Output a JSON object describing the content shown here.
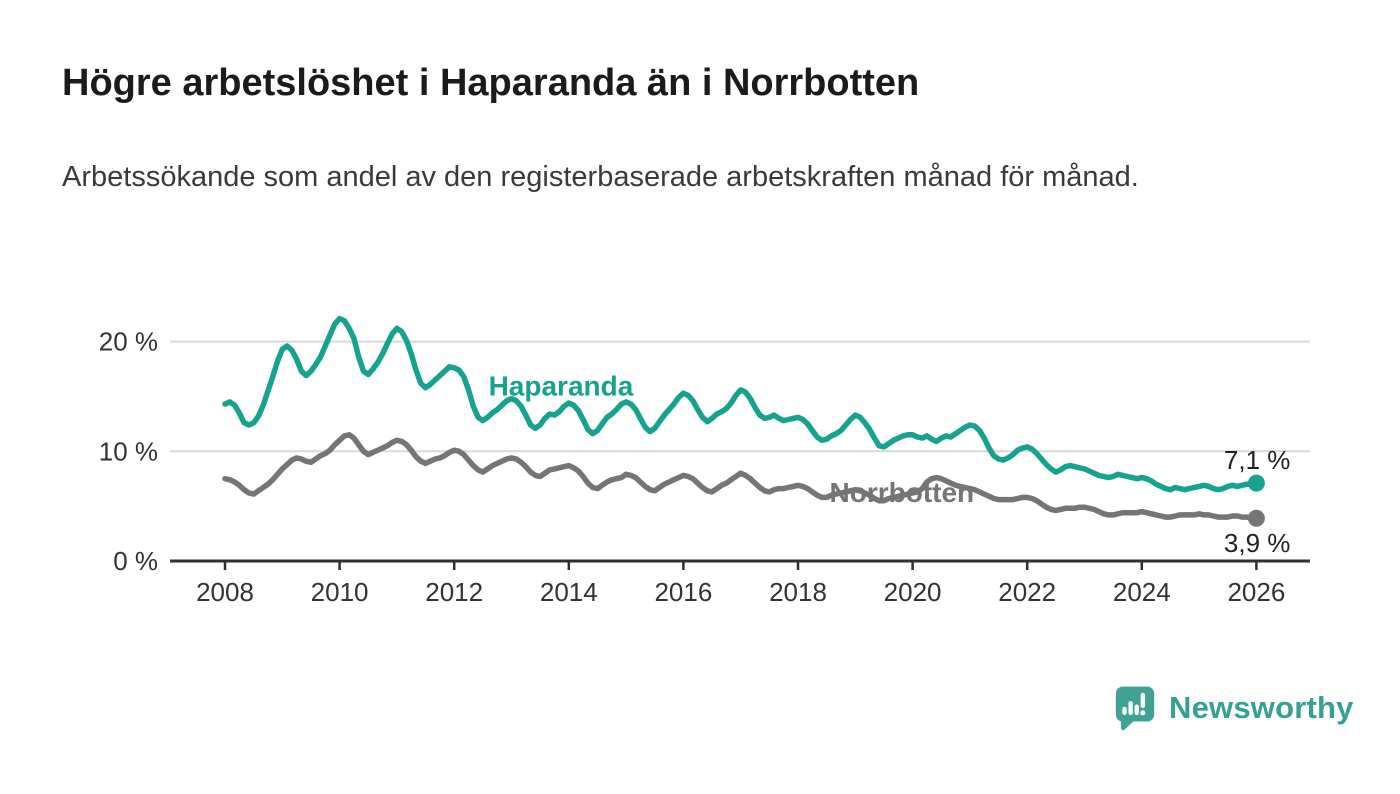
{
  "header": {
    "title": "Högre arbetslöshet i Haparanda än i Norrbotten",
    "subtitle": "Arbetssökande som andel av den registerbaserade arbetskraften månad för månad."
  },
  "footer": {
    "brand": "Newsworthy",
    "brand_color": "#35a093"
  },
  "chart_data": {
    "type": "line",
    "title": "Högre arbetslöshet i Haparanda än i Norrbotten",
    "xlabel": "",
    "ylabel": "",
    "x_origin_year": 2008,
    "x_ticks": [
      2008,
      2010,
      2012,
      2014,
      2016,
      2018,
      2020,
      2022,
      2024,
      2026
    ],
    "y_ticks": [
      {
        "value": 0,
        "label": "0 %"
      },
      {
        "value": 10,
        "label": "10 %"
      },
      {
        "value": 20,
        "label": "20 %"
      }
    ],
    "grid_values": [
      10,
      20
    ],
    "ylim": [
      0,
      24
    ],
    "legend_position": "inline-labels",
    "colors": {
      "grid": "#d9d9d9",
      "axis": "#2f2f2f",
      "tick_text": "#333333",
      "value_text": "#222222"
    },
    "frequency": "monthly",
    "series": [
      {
        "name": "Haparanda",
        "color": "#17a28f",
        "start_year": 2008,
        "end_label": "7,1 %",
        "end_label_position": "above",
        "label_pos": {
          "x": 2012.6,
          "y": 15.1
        },
        "values": [
          14.3,
          14.5,
          14.2,
          13.5,
          12.6,
          12.4,
          12.6,
          13.2,
          14.2,
          15.5,
          16.8,
          18.2,
          19.3,
          19.6,
          19.2,
          18.4,
          17.3,
          16.9,
          17.3,
          17.9,
          18.6,
          19.6,
          20.6,
          21.6,
          22.1,
          21.9,
          21.2,
          20.3,
          18.6,
          17.3,
          17.0,
          17.5,
          18.1,
          18.9,
          19.8,
          20.7,
          21.2,
          20.9,
          20.1,
          18.9,
          17.4,
          16.2,
          15.8,
          16.1,
          16.5,
          16.9,
          17.3,
          17.7,
          17.6,
          17.4,
          16.8,
          15.6,
          14.1,
          13.1,
          12.8,
          13.1,
          13.5,
          13.8,
          14.2,
          14.6,
          14.8,
          14.6,
          14.1,
          13.3,
          12.4,
          12.1,
          12.4,
          13.0,
          13.4,
          13.3,
          13.6,
          14.1,
          14.4,
          14.2,
          13.7,
          12.9,
          12.0,
          11.6,
          11.9,
          12.5,
          13.1,
          13.4,
          13.8,
          14.3,
          14.5,
          14.3,
          13.8,
          13.0,
          12.2,
          11.8,
          12.1,
          12.7,
          13.3,
          13.8,
          14.3,
          14.9,
          15.3,
          15.1,
          14.6,
          13.8,
          13.1,
          12.7,
          13.0,
          13.4,
          13.6,
          13.9,
          14.4,
          15.1,
          15.6,
          15.4,
          14.8,
          14.0,
          13.3,
          13.0,
          13.1,
          13.3,
          13.0,
          12.8,
          12.9,
          13.0,
          13.1,
          12.9,
          12.5,
          11.9,
          11.3,
          11.0,
          11.1,
          11.4,
          11.6,
          11.9,
          12.4,
          12.9,
          13.3,
          13.1,
          12.6,
          12.0,
          11.2,
          10.5,
          10.4,
          10.7,
          11.0,
          11.2,
          11.4,
          11.5,
          11.5,
          11.3,
          11.2,
          11.4,
          11.1,
          10.9,
          11.2,
          11.4,
          11.3,
          11.6,
          11.9,
          12.2,
          12.4,
          12.3,
          11.9,
          11.2,
          10.3,
          9.6,
          9.3,
          9.2,
          9.4,
          9.7,
          10.1,
          10.3,
          10.4,
          10.2,
          9.8,
          9.3,
          8.8,
          8.4,
          8.1,
          8.3,
          8.6,
          8.7,
          8.6,
          8.5,
          8.4,
          8.2,
          8.0,
          7.8,
          7.7,
          7.6,
          7.7,
          7.9,
          7.8,
          7.7,
          7.6,
          7.5,
          7.6,
          7.5,
          7.3,
          7.0,
          6.8,
          6.6,
          6.5,
          6.7,
          6.6,
          6.5,
          6.6,
          6.7,
          6.8,
          6.9,
          6.8,
          6.6,
          6.5,
          6.6,
          6.8,
          6.9,
          6.8,
          6.9,
          7.0,
          7.0,
          7.1
        ]
      },
      {
        "name": "Norrbotten",
        "color": "#757575",
        "start_year": 2008,
        "end_label": "3,9 %",
        "end_label_position": "below",
        "label_pos": {
          "x": 2018.55,
          "y": 5.4
        },
        "values": [
          7.5,
          7.4,
          7.2,
          6.9,
          6.5,
          6.2,
          6.1,
          6.4,
          6.7,
          7.0,
          7.4,
          7.9,
          8.4,
          8.8,
          9.2,
          9.4,
          9.3,
          9.1,
          9.0,
          9.3,
          9.6,
          9.8,
          10.1,
          10.6,
          11.0,
          11.4,
          11.5,
          11.2,
          10.6,
          10.0,
          9.7,
          9.9,
          10.1,
          10.3,
          10.5,
          10.8,
          11.0,
          10.9,
          10.6,
          10.1,
          9.5,
          9.1,
          8.9,
          9.1,
          9.3,
          9.4,
          9.6,
          9.9,
          10.1,
          10.0,
          9.7,
          9.2,
          8.7,
          8.3,
          8.1,
          8.4,
          8.7,
          8.9,
          9.1,
          9.3,
          9.4,
          9.3,
          9.0,
          8.6,
          8.1,
          7.8,
          7.7,
          8.0,
          8.3,
          8.4,
          8.5,
          8.6,
          8.7,
          8.5,
          8.2,
          7.7,
          7.1,
          6.7,
          6.6,
          6.9,
          7.2,
          7.4,
          7.5,
          7.6,
          7.9,
          7.8,
          7.6,
          7.2,
          6.8,
          6.5,
          6.4,
          6.7,
          7.0,
          7.2,
          7.4,
          7.6,
          7.8,
          7.7,
          7.5,
          7.1,
          6.7,
          6.4,
          6.3,
          6.6,
          6.9,
          7.1,
          7.4,
          7.7,
          8.0,
          7.8,
          7.5,
          7.1,
          6.7,
          6.4,
          6.3,
          6.5,
          6.6,
          6.6,
          6.7,
          6.8,
          6.9,
          6.8,
          6.6,
          6.3,
          6.0,
          5.8,
          5.8,
          6.0,
          6.1,
          6.2,
          6.3,
          6.4,
          6.5,
          6.4,
          6.2,
          6.0,
          5.7,
          5.5,
          5.5,
          5.7,
          5.8,
          5.9,
          6.0,
          6.1,
          6.2,
          6.3,
          6.6,
          7.2,
          7.5,
          7.6,
          7.5,
          7.3,
          7.1,
          6.9,
          6.8,
          6.7,
          6.6,
          6.5,
          6.3,
          6.1,
          5.9,
          5.7,
          5.6,
          5.6,
          5.6,
          5.6,
          5.7,
          5.8,
          5.8,
          5.7,
          5.5,
          5.2,
          4.9,
          4.7,
          4.6,
          4.7,
          4.8,
          4.8,
          4.8,
          4.9,
          4.9,
          4.8,
          4.7,
          4.5,
          4.3,
          4.2,
          4.2,
          4.3,
          4.4,
          4.4,
          4.4,
          4.4,
          4.5,
          4.4,
          4.3,
          4.2,
          4.1,
          4.0,
          4.0,
          4.1,
          4.2,
          4.2,
          4.2,
          4.2,
          4.3,
          4.2,
          4.2,
          4.1,
          4.0,
          4.0,
          4.0,
          4.1,
          4.1,
          4.0,
          4.0,
          3.9,
          3.9
        ]
      }
    ]
  }
}
